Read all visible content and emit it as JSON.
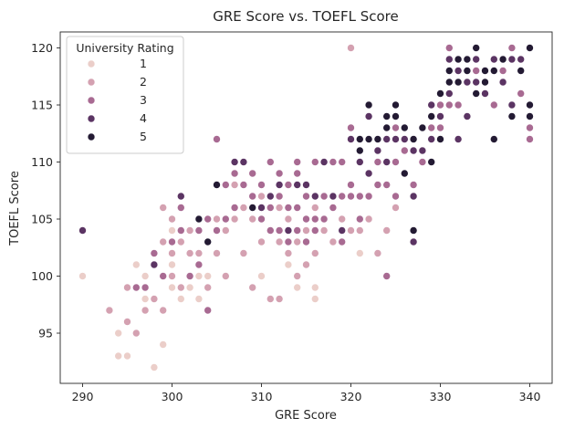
{
  "chart_data": {
    "type": "scatter",
    "title": "GRE Score vs. TOEFL Score",
    "xlabel": "GRE Score",
    "ylabel": "TOEFL Score",
    "xlim": [
      287.5,
      342.5
    ],
    "ylim": [
      90.6,
      121.4
    ],
    "xticks": [
      290,
      300,
      310,
      320,
      330,
      340
    ],
    "yticks": [
      95,
      100,
      105,
      110,
      115,
      120
    ],
    "grid": false,
    "legend": {
      "title": "University Rating",
      "placement": "top-left",
      "entries": [
        {
          "label": "1",
          "color": "#ebcec9"
        },
        {
          "label": "2",
          "color": "#d4a1b1"
        },
        {
          "label": "3",
          "color": "#a86a92"
        },
        {
          "label": "4",
          "color": "#5b3463"
        },
        {
          "label": "5",
          "color": "#231a33"
        }
      ]
    },
    "series": [
      {
        "rating": "1",
        "color": "#ebcec9",
        "points": [
          [
            290,
            100
          ],
          [
            294,
            95
          ],
          [
            294,
            93
          ],
          [
            295,
            93
          ],
          [
            296,
            101
          ],
          [
            297,
            98
          ],
          [
            297,
            100
          ],
          [
            298,
            92
          ],
          [
            299,
            94
          ],
          [
            300,
            99
          ],
          [
            300,
            101
          ],
          [
            300,
            105
          ],
          [
            300,
            104
          ],
          [
            301,
            98
          ],
          [
            302,
            99
          ],
          [
            303,
            100
          ],
          [
            303,
            98
          ],
          [
            304,
            100
          ],
          [
            310,
            100
          ],
          [
            313,
            101
          ],
          [
            314,
            99
          ],
          [
            315,
            105
          ],
          [
            316,
            98
          ],
          [
            316,
            99
          ],
          [
            321,
            102
          ]
        ]
      },
      {
        "rating": "2",
        "color": "#d4a1b1",
        "points": [
          [
            293,
            97
          ],
          [
            295,
            96
          ],
          [
            295,
            99
          ],
          [
            296,
            95
          ],
          [
            297,
            97
          ],
          [
            298,
            98
          ],
          [
            298,
            101
          ],
          [
            299,
            97
          ],
          [
            299,
            103
          ],
          [
            300,
            100
          ],
          [
            300,
            102
          ],
          [
            301,
            99
          ],
          [
            301,
            103
          ],
          [
            302,
            102
          ],
          [
            302,
            104
          ],
          [
            303,
            102
          ],
          [
            304,
            99
          ],
          [
            305,
            102
          ],
          [
            305,
            105
          ],
          [
            306,
            100
          ],
          [
            306,
            104
          ],
          [
            307,
            105
          ],
          [
            307,
            108
          ],
          [
            308,
            102
          ],
          [
            308,
            106
          ],
          [
            309,
            105
          ],
          [
            309,
            99
          ],
          [
            310,
            103
          ],
          [
            310,
            107
          ],
          [
            311,
            98
          ],
          [
            311,
            104
          ],
          [
            312,
            98
          ],
          [
            312,
            103
          ],
          [
            312,
            106
          ],
          [
            313,
            102
          ],
          [
            313,
            105
          ],
          [
            314,
            100
          ],
          [
            314,
            103
          ],
          [
            315,
            101
          ],
          [
            315,
            104
          ],
          [
            316,
            102
          ],
          [
            316,
            106
          ],
          [
            317,
            104
          ],
          [
            318,
            103
          ],
          [
            319,
            105
          ],
          [
            320,
            104
          ],
          [
            320,
            120
          ],
          [
            321,
            104
          ],
          [
            322,
            105
          ],
          [
            323,
            102
          ],
          [
            324,
            104
          ],
          [
            325,
            106
          ],
          [
            300,
            105
          ],
          [
            299,
            106
          ]
        ]
      },
      {
        "rating": "3",
        "color": "#a86a92",
        "points": [
          [
            296,
            99
          ],
          [
            297,
            99
          ],
          [
            298,
            102
          ],
          [
            299,
            100
          ],
          [
            300,
            103
          ],
          [
            301,
            104
          ],
          [
            301,
            106
          ],
          [
            302,
            100
          ],
          [
            303,
            101
          ],
          [
            303,
            104
          ],
          [
            304,
            97
          ],
          [
            304,
            105
          ],
          [
            305,
            112
          ],
          [
            305,
            104
          ],
          [
            306,
            108
          ],
          [
            306,
            105
          ],
          [
            307,
            109
          ],
          [
            307,
            106
          ],
          [
            308,
            108
          ],
          [
            308,
            110
          ],
          [
            309,
            109
          ],
          [
            309,
            107
          ],
          [
            310,
            105
          ],
          [
            310,
            108
          ],
          [
            311,
            104
          ],
          [
            311,
            106
          ],
          [
            311,
            110
          ],
          [
            312,
            104
          ],
          [
            312,
            107
          ],
          [
            312,
            109
          ],
          [
            313,
            103
          ],
          [
            313,
            106
          ],
          [
            313,
            108
          ],
          [
            314,
            104
          ],
          [
            314,
            106
          ],
          [
            314,
            109
          ],
          [
            314,
            110
          ],
          [
            315,
            103
          ],
          [
            315,
            105
          ],
          [
            315,
            107
          ],
          [
            316,
            104
          ],
          [
            316,
            105
          ],
          [
            316,
            110
          ],
          [
            317,
            105
          ],
          [
            317,
            107
          ],
          [
            317,
            110
          ],
          [
            318,
            106
          ],
          [
            318,
            110
          ],
          [
            319,
            103
          ],
          [
            319,
            107
          ],
          [
            319,
            110
          ],
          [
            320,
            107
          ],
          [
            320,
            108
          ],
          [
            321,
            105
          ],
          [
            321,
            107
          ],
          [
            322,
            107
          ],
          [
            322,
            109
          ],
          [
            323,
            108
          ],
          [
            323,
            110
          ],
          [
            324,
            108
          ],
          [
            324,
            100
          ],
          [
            325,
            107
          ],
          [
            325,
            110
          ],
          [
            326,
            111
          ],
          [
            327,
            108
          ],
          [
            328,
            110
          ],
          [
            329,
            113
          ],
          [
            329,
            114
          ],
          [
            330,
            113
          ],
          [
            330,
            115
          ],
          [
            331,
            115
          ],
          [
            331,
            120
          ],
          [
            332,
            115
          ],
          [
            333,
            117
          ],
          [
            334,
            118
          ],
          [
            336,
            115
          ],
          [
            337,
            118
          ],
          [
            338,
            120
          ],
          [
            339,
            116
          ],
          [
            340,
            112
          ],
          [
            340,
            113
          ],
          [
            325,
            113
          ],
          [
            326,
            112
          ],
          [
            320,
            113
          ]
        ]
      },
      {
        "rating": "4",
        "color": "#5b3463",
        "points": [
          [
            290,
            104
          ],
          [
            298,
            101
          ],
          [
            301,
            107
          ],
          [
            304,
            103
          ],
          [
            307,
            110
          ],
          [
            308,
            110
          ],
          [
            310,
            106
          ],
          [
            311,
            107
          ],
          [
            312,
            108
          ],
          [
            313,
            104
          ],
          [
            314,
            108
          ],
          [
            315,
            108
          ],
          [
            316,
            107
          ],
          [
            317,
            110
          ],
          [
            318,
            107
          ],
          [
            319,
            104
          ],
          [
            320,
            112
          ],
          [
            321,
            110
          ],
          [
            322,
            114
          ],
          [
            322,
            109
          ],
          [
            323,
            111
          ],
          [
            324,
            112
          ],
          [
            324,
            110
          ],
          [
            325,
            112
          ],
          [
            326,
            113
          ],
          [
            326,
            112
          ],
          [
            327,
            103
          ],
          [
            327,
            107
          ],
          [
            327,
            111
          ],
          [
            328,
            111
          ],
          [
            329,
            112
          ],
          [
            329,
            115
          ],
          [
            330,
            114
          ],
          [
            330,
            116
          ],
          [
            331,
            116
          ],
          [
            331,
            119
          ],
          [
            332,
            112
          ],
          [
            332,
            118
          ],
          [
            333,
            114
          ],
          [
            333,
            117
          ],
          [
            334,
            119
          ],
          [
            334,
            117
          ],
          [
            335,
            116
          ],
          [
            335,
            118
          ],
          [
            336,
            119
          ],
          [
            337,
            117
          ],
          [
            338,
            115
          ],
          [
            338,
            119
          ],
          [
            339,
            119
          ],
          [
            340,
            114
          ]
        ]
      },
      {
        "rating": "5",
        "color": "#231a33",
        "points": [
          [
            303,
            105
          ],
          [
            304,
            103
          ],
          [
            305,
            108
          ],
          [
            309,
            106
          ],
          [
            321,
            112
          ],
          [
            321,
            111
          ],
          [
            322,
            115
          ],
          [
            322,
            112
          ],
          [
            323,
            112
          ],
          [
            324,
            114
          ],
          [
            324,
            113
          ],
          [
            325,
            114
          ],
          [
            325,
            115
          ],
          [
            326,
            109
          ],
          [
            326,
            113
          ],
          [
            327,
            104
          ],
          [
            327,
            112
          ],
          [
            328,
            113
          ],
          [
            329,
            110
          ],
          [
            329,
            114
          ],
          [
            330,
            116
          ],
          [
            330,
            112
          ],
          [
            331,
            118
          ],
          [
            331,
            117
          ],
          [
            332,
            119
          ],
          [
            332,
            117
          ],
          [
            333,
            118
          ],
          [
            333,
            119
          ],
          [
            334,
            120
          ],
          [
            334,
            116
          ],
          [
            335,
            117
          ],
          [
            335,
            118
          ],
          [
            336,
            112
          ],
          [
            336,
            118
          ],
          [
            337,
            119
          ],
          [
            338,
            114
          ],
          [
            339,
            118
          ],
          [
            340,
            115
          ],
          [
            340,
            120
          ],
          [
            340,
            114
          ]
        ]
      }
    ]
  }
}
